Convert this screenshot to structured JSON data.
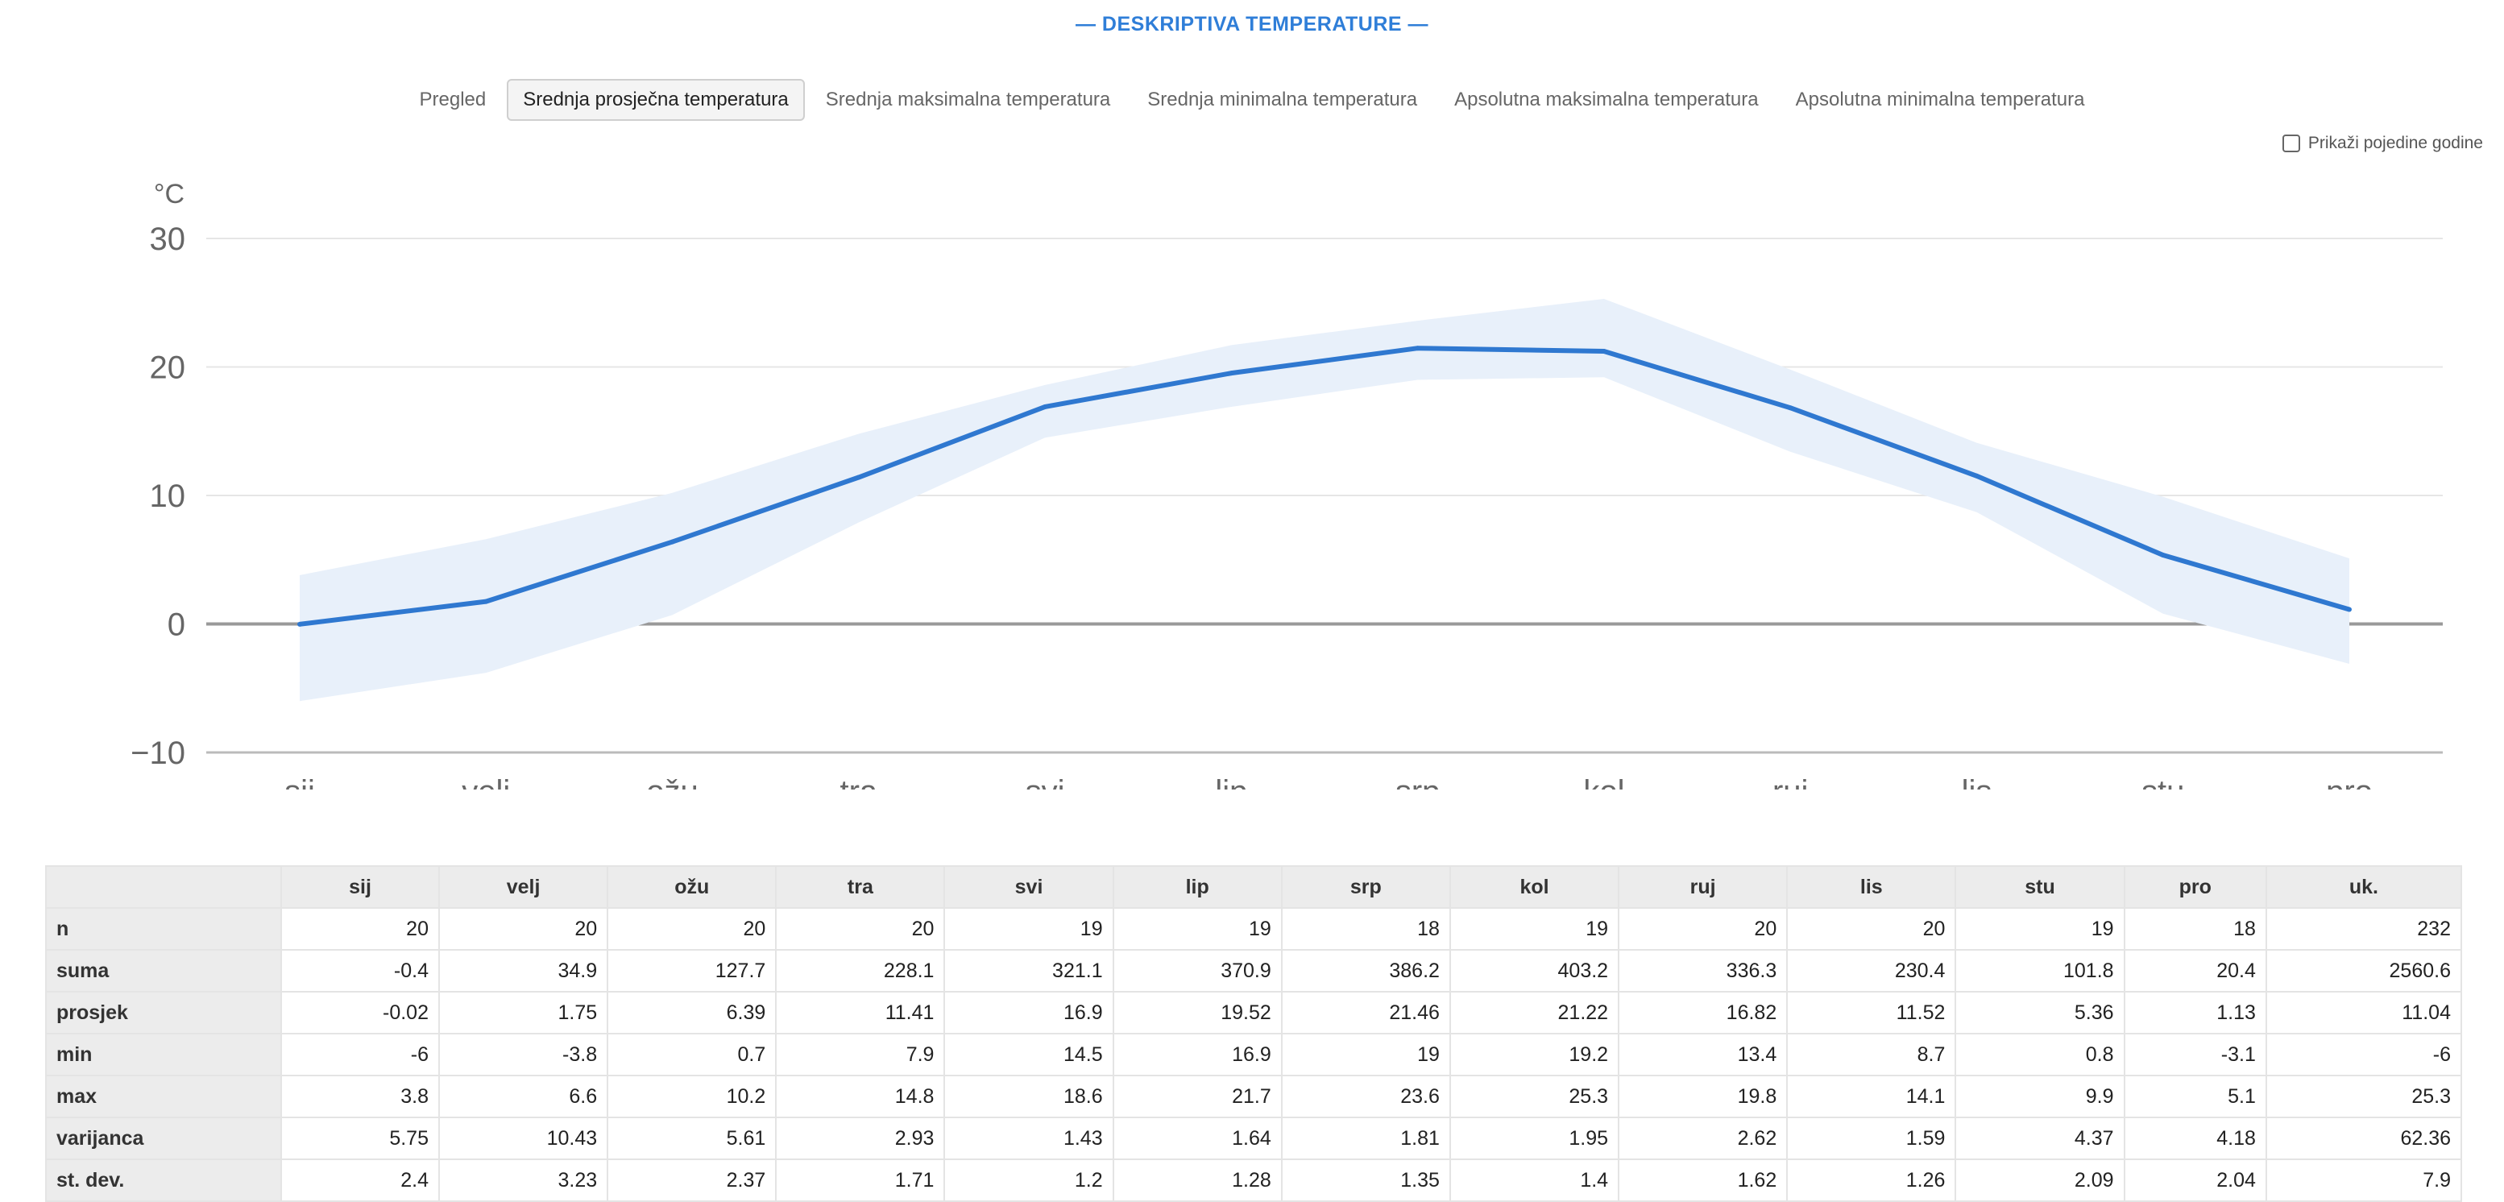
{
  "header": {
    "title": "— DESKRIPTIVA TEMPERATURE —"
  },
  "tabs": [
    {
      "label": "Pregled",
      "active": false
    },
    {
      "label": "Srednja prosječna temperatura",
      "active": true
    },
    {
      "label": "Srednja maksimalna temperatura",
      "active": false
    },
    {
      "label": "Srednja minimalna temperatura",
      "active": false
    },
    {
      "label": "Apsolutna maksimalna temperatura",
      "active": false
    },
    {
      "label": "Apsolutna minimalna temperatura",
      "active": false
    }
  ],
  "toggle": {
    "label": "Prikaži pojedine godine",
    "checked": false
  },
  "chart_data": {
    "type": "line",
    "ylabel": "°C",
    "ylim": [
      -10,
      30
    ],
    "yticks": [
      30,
      20,
      10,
      0,
      -10
    ],
    "ytick_labels": [
      "30",
      "20",
      "10",
      "0",
      "−10"
    ],
    "categories": [
      "sij",
      "velj",
      "ožu",
      "tra",
      "svi",
      "lip",
      "srp",
      "kol",
      "ruj",
      "lis",
      "stu",
      "pro"
    ],
    "series": [
      {
        "values": [
          -0.02,
          1.75,
          6.39,
          11.41,
          16.9,
          19.52,
          21.46,
          21.22,
          16.82,
          11.52,
          5.36,
          1.13
        ],
        "color": "#2f78d0"
      }
    ],
    "band_upper": [
      3.8,
      6.6,
      10.2,
      14.8,
      18.6,
      21.7,
      23.6,
      25.3,
      19.8,
      14.1,
      9.9,
      5.1
    ],
    "band_lower": [
      -6,
      -3.8,
      0.7,
      7.9,
      14.5,
      16.9,
      19,
      19.2,
      13.4,
      8.7,
      0.8,
      -3.1
    ],
    "band_color": "#e8f0fa",
    "grid": true,
    "zero_line_color": "#999999"
  },
  "table": {
    "columns": [
      "sij",
      "velj",
      "ožu",
      "tra",
      "svi",
      "lip",
      "srp",
      "kol",
      "ruj",
      "lis",
      "stu",
      "pro",
      "uk."
    ],
    "rows": [
      {
        "label": "n",
        "values": [
          "20",
          "20",
          "20",
          "20",
          "19",
          "19",
          "18",
          "19",
          "20",
          "20",
          "19",
          "18",
          "232"
        ]
      },
      {
        "label": "suma",
        "values": [
          "-0.4",
          "34.9",
          "127.7",
          "228.1",
          "321.1",
          "370.9",
          "386.2",
          "403.2",
          "336.3",
          "230.4",
          "101.8",
          "20.4",
          "2560.6"
        ]
      },
      {
        "label": "prosjek",
        "values": [
          "-0.02",
          "1.75",
          "6.39",
          "11.41",
          "16.9",
          "19.52",
          "21.46",
          "21.22",
          "16.82",
          "11.52",
          "5.36",
          "1.13",
          "11.04"
        ]
      },
      {
        "label": "min",
        "values": [
          "-6",
          "-3.8",
          "0.7",
          "7.9",
          "14.5",
          "16.9",
          "19",
          "19.2",
          "13.4",
          "8.7",
          "0.8",
          "-3.1",
          "-6"
        ]
      },
      {
        "label": "max",
        "values": [
          "3.8",
          "6.6",
          "10.2",
          "14.8",
          "18.6",
          "21.7",
          "23.6",
          "25.3",
          "19.8",
          "14.1",
          "9.9",
          "5.1",
          "25.3"
        ]
      },
      {
        "label": "varijanca",
        "values": [
          "5.75",
          "10.43",
          "5.61",
          "2.93",
          "1.43",
          "1.64",
          "1.81",
          "1.95",
          "2.62",
          "1.59",
          "4.37",
          "4.18",
          "62.36"
        ]
      },
      {
        "label": "st. dev.",
        "values": [
          "2.4",
          "3.23",
          "2.37",
          "1.71",
          "1.2",
          "1.28",
          "1.35",
          "1.4",
          "1.62",
          "1.26",
          "2.09",
          "2.04",
          "7.9"
        ]
      }
    ]
  }
}
